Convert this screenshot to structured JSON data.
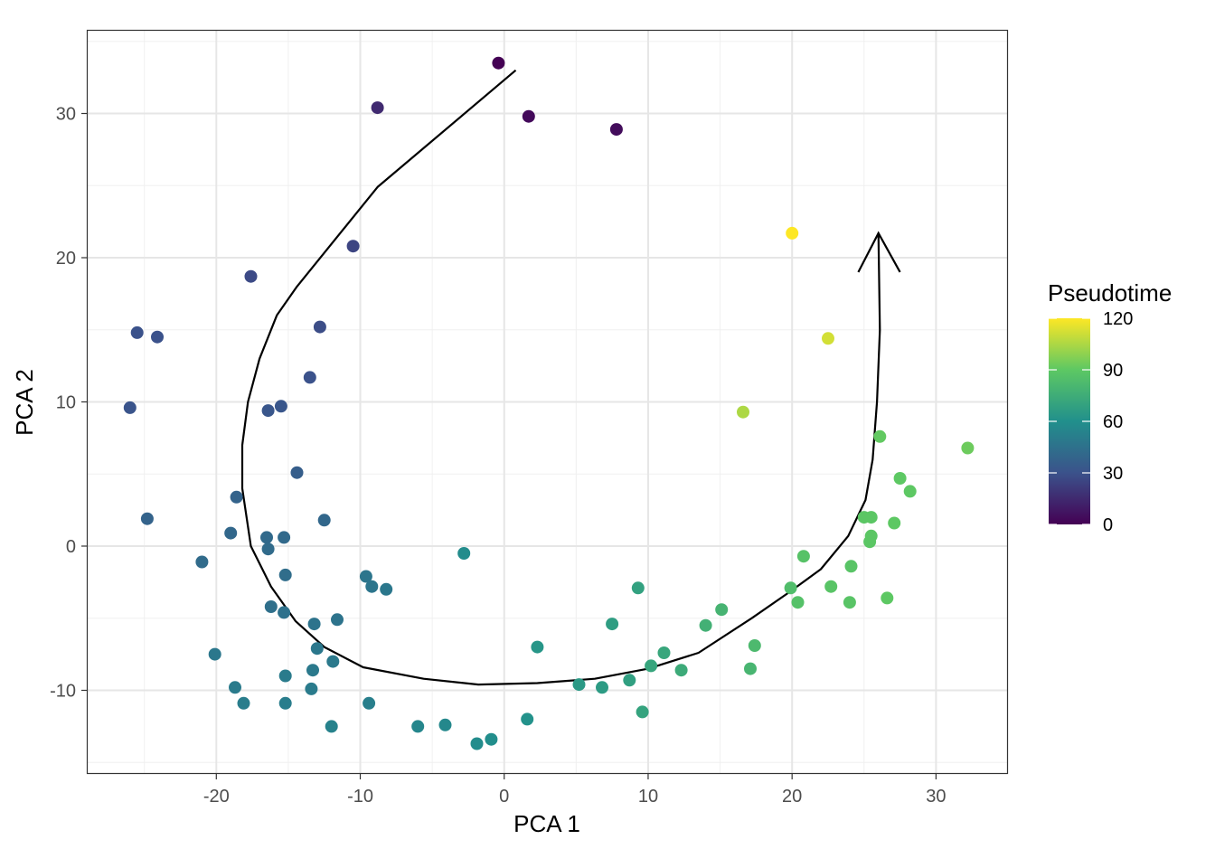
{
  "chart_data": {
    "type": "scatter",
    "xlabel": "PCA 1",
    "ylabel": "PCA 2",
    "xlim": [
      -29,
      35
    ],
    "ylim": [
      -15.8,
      35.8
    ],
    "x_ticks": [
      -20,
      -10,
      0,
      10,
      20,
      30
    ],
    "y_ticks": [
      -10,
      0,
      10,
      20,
      30
    ],
    "grid": true,
    "color_scale": {
      "name": "viridis",
      "title": "Pseudotime",
      "range": [
        0,
        120
      ],
      "ticks": [
        0,
        30,
        60,
        90,
        120
      ],
      "stops": [
        "#440154",
        "#3b528b",
        "#21908c",
        "#5dc863",
        "#fde725"
      ]
    },
    "points": [
      {
        "x": -0.4,
        "y": 33.5,
        "pseudotime": 0
      },
      {
        "x": 1.7,
        "y": 29.8,
        "pseudotime": 3
      },
      {
        "x": 7.8,
        "y": 28.9,
        "pseudotime": 4
      },
      {
        "x": -8.8,
        "y": 30.4,
        "pseudotime": 15
      },
      {
        "x": -10.5,
        "y": 20.8,
        "pseudotime": 25
      },
      {
        "x": -17.6,
        "y": 18.7,
        "pseudotime": 27
      },
      {
        "x": -12.8,
        "y": 15.2,
        "pseudotime": 28
      },
      {
        "x": -25.5,
        "y": 14.8,
        "pseudotime": 30
      },
      {
        "x": -24.1,
        "y": 14.5,
        "pseudotime": 30
      },
      {
        "x": -13.5,
        "y": 11.7,
        "pseudotime": 30
      },
      {
        "x": -26.0,
        "y": 9.6,
        "pseudotime": 31
      },
      {
        "x": -16.4,
        "y": 9.4,
        "pseudotime": 32
      },
      {
        "x": -15.5,
        "y": 9.7,
        "pseudotime": 32
      },
      {
        "x": -14.4,
        "y": 5.1,
        "pseudotime": 36
      },
      {
        "x": -18.6,
        "y": 3.4,
        "pseudotime": 38
      },
      {
        "x": -24.8,
        "y": 1.9,
        "pseudotime": 38
      },
      {
        "x": -12.5,
        "y": 1.8,
        "pseudotime": 40
      },
      {
        "x": -19.0,
        "y": 0.9,
        "pseudotime": 40
      },
      {
        "x": -16.5,
        "y": 0.6,
        "pseudotime": 41
      },
      {
        "x": -15.3,
        "y": 0.6,
        "pseudotime": 41
      },
      {
        "x": -16.4,
        "y": -0.2,
        "pseudotime": 42
      },
      {
        "x": -21.0,
        "y": -1.1,
        "pseudotime": 42
      },
      {
        "x": -15.2,
        "y": -2.0,
        "pseudotime": 43
      },
      {
        "x": -16.2,
        "y": -4.2,
        "pseudotime": 44
      },
      {
        "x": -15.3,
        "y": -4.6,
        "pseudotime": 45
      },
      {
        "x": -13.2,
        "y": -5.4,
        "pseudotime": 46
      },
      {
        "x": -11.6,
        "y": -5.1,
        "pseudotime": 46
      },
      {
        "x": -9.6,
        "y": -2.1,
        "pseudotime": 47
      },
      {
        "x": -9.2,
        "y": -2.8,
        "pseudotime": 47
      },
      {
        "x": -8.2,
        "y": -3.0,
        "pseudotime": 48
      },
      {
        "x": -13.0,
        "y": -7.1,
        "pseudotime": 48
      },
      {
        "x": -20.1,
        "y": -7.5,
        "pseudotime": 48
      },
      {
        "x": -11.9,
        "y": -8.0,
        "pseudotime": 49
      },
      {
        "x": -13.3,
        "y": -8.6,
        "pseudotime": 49
      },
      {
        "x": -15.2,
        "y": -9.0,
        "pseudotime": 50
      },
      {
        "x": -18.7,
        "y": -9.8,
        "pseudotime": 50
      },
      {
        "x": -13.4,
        "y": -9.9,
        "pseudotime": 50
      },
      {
        "x": -18.1,
        "y": -10.9,
        "pseudotime": 51
      },
      {
        "x": -15.2,
        "y": -10.9,
        "pseudotime": 51
      },
      {
        "x": -9.4,
        "y": -10.9,
        "pseudotime": 52
      },
      {
        "x": -12.0,
        "y": -12.5,
        "pseudotime": 53
      },
      {
        "x": -6.0,
        "y": -12.5,
        "pseudotime": 55
      },
      {
        "x": -4.1,
        "y": -12.4,
        "pseudotime": 56
      },
      {
        "x": -2.8,
        "y": -0.5,
        "pseudotime": 58
      },
      {
        "x": -1.9,
        "y": -13.7,
        "pseudotime": 58
      },
      {
        "x": -0.9,
        "y": -13.4,
        "pseudotime": 59
      },
      {
        "x": 1.6,
        "y": -12.0,
        "pseudotime": 61
      },
      {
        "x": 2.3,
        "y": -7.0,
        "pseudotime": 63
      },
      {
        "x": 5.2,
        "y": -9.6,
        "pseudotime": 65
      },
      {
        "x": 6.8,
        "y": -9.8,
        "pseudotime": 66
      },
      {
        "x": 7.5,
        "y": -5.4,
        "pseudotime": 67
      },
      {
        "x": 8.7,
        "y": -9.3,
        "pseudotime": 68
      },
      {
        "x": 9.3,
        "y": -2.9,
        "pseudotime": 69
      },
      {
        "x": 9.6,
        "y": -11.5,
        "pseudotime": 70
      },
      {
        "x": 10.2,
        "y": -8.3,
        "pseudotime": 71
      },
      {
        "x": 11.1,
        "y": -7.4,
        "pseudotime": 72
      },
      {
        "x": 12.3,
        "y": -8.6,
        "pseudotime": 74
      },
      {
        "x": 14.0,
        "y": -5.5,
        "pseudotime": 77
      },
      {
        "x": 15.1,
        "y": -4.4,
        "pseudotime": 79
      },
      {
        "x": 17.1,
        "y": -8.5,
        "pseudotime": 80
      },
      {
        "x": 17.4,
        "y": -6.9,
        "pseudotime": 82
      },
      {
        "x": 19.9,
        "y": -2.9,
        "pseudotime": 84
      },
      {
        "x": 20.4,
        "y": -3.9,
        "pseudotime": 86
      },
      {
        "x": 20.8,
        "y": -0.7,
        "pseudotime": 87
      },
      {
        "x": 22.7,
        "y": -2.8,
        "pseudotime": 88
      },
      {
        "x": 24.0,
        "y": -3.9,
        "pseudotime": 88
      },
      {
        "x": 24.1,
        "y": -1.4,
        "pseudotime": 88
      },
      {
        "x": 25.0,
        "y": 2.0,
        "pseudotime": 89
      },
      {
        "x": 25.5,
        "y": 2.0,
        "pseudotime": 89
      },
      {
        "x": 25.4,
        "y": 0.3,
        "pseudotime": 89
      },
      {
        "x": 25.5,
        "y": 0.7,
        "pseudotime": 89
      },
      {
        "x": 26.6,
        "y": -3.6,
        "pseudotime": 90
      },
      {
        "x": 27.1,
        "y": 1.6,
        "pseudotime": 90
      },
      {
        "x": 27.5,
        "y": 4.7,
        "pseudotime": 90
      },
      {
        "x": 28.2,
        "y": 3.8,
        "pseudotime": 90
      },
      {
        "x": 26.1,
        "y": 7.6,
        "pseudotime": 91
      },
      {
        "x": 32.2,
        "y": 6.8,
        "pseudotime": 93
      },
      {
        "x": 16.6,
        "y": 9.3,
        "pseudotime": 105
      },
      {
        "x": 22.5,
        "y": 14.4,
        "pseudotime": 112
      },
      {
        "x": 20.0,
        "y": 21.7,
        "pseudotime": 124
      }
    ],
    "trajectory": [
      [
        0.8,
        33.0
      ],
      [
        -8.8,
        24.9
      ],
      [
        -14.4,
        18.0
      ],
      [
        -15.8,
        16.0
      ],
      [
        -17.0,
        13.0
      ],
      [
        -17.8,
        10.0
      ],
      [
        -18.2,
        7.0
      ],
      [
        -18.2,
        4.0
      ],
      [
        -17.6,
        0.0
      ],
      [
        -16.2,
        -2.8
      ],
      [
        -14.5,
        -5.2
      ],
      [
        -12.5,
        -7.0
      ],
      [
        -9.8,
        -8.4
      ],
      [
        -5.6,
        -9.2
      ],
      [
        -1.8,
        -9.6
      ],
      [
        2.3,
        -9.5
      ],
      [
        6.3,
        -9.2
      ],
      [
        10.0,
        -8.5
      ],
      [
        13.5,
        -7.4
      ],
      [
        17.2,
        -5.0
      ],
      [
        19.8,
        -3.2
      ],
      [
        22.0,
        -1.6
      ],
      [
        23.9,
        0.7
      ],
      [
        25.1,
        3.2
      ],
      [
        25.6,
        6.0
      ],
      [
        25.9,
        10.0
      ],
      [
        26.1,
        15.0
      ],
      [
        26.0,
        21.7
      ]
    ],
    "arrow_head": {
      "tip": [
        26.0,
        21.7
      ],
      "left": [
        24.6,
        19.0
      ],
      "right": [
        27.5,
        19.0
      ]
    }
  }
}
